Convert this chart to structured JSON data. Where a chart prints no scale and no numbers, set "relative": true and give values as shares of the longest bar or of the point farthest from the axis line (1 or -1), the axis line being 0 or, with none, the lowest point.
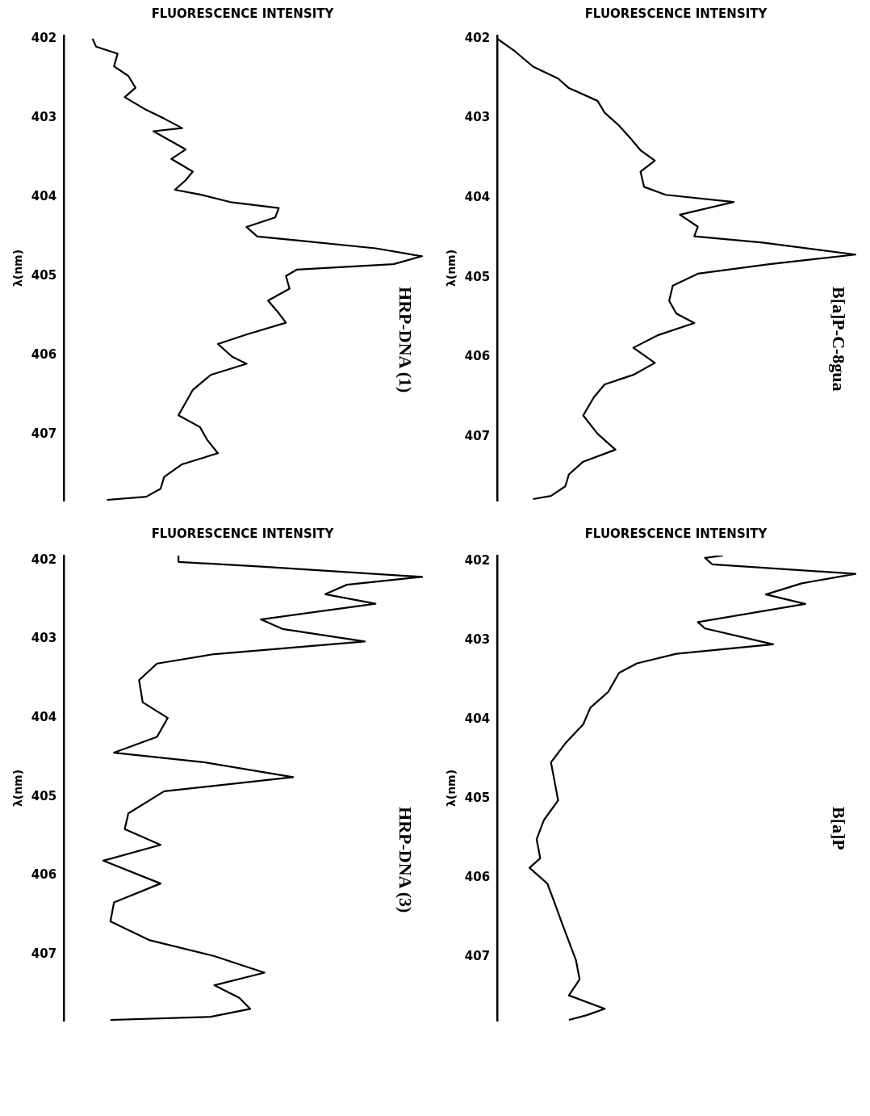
{
  "chart_data": [
    {
      "type": "line",
      "title": "HRP-DNA (1)",
      "xlabel": "FLUORESCENCE INTENSITY",
      "ylabel": "λ(nm)",
      "orientation": "horizontal",
      "relative": true,
      "ylim": [
        407.84,
        401.96
      ],
      "yticks": [
        402,
        403,
        404,
        405,
        406,
        407
      ],
      "tick_labels": "y",
      "series": [
        {
          "color": "#000000",
          "x": [
            402.0,
            402.1,
            402.19,
            402.35,
            402.47,
            402.62,
            402.74,
            402.9,
            403.01,
            403.13,
            403.17,
            403.4,
            403.52,
            403.68,
            403.79,
            403.91,
            403.97,
            404.07,
            404.14,
            404.26,
            404.38,
            404.5,
            404.55,
            404.65,
            404.75,
            404.85,
            404.92,
            405.0,
            405.16,
            405.31,
            405.47,
            405.59,
            405.74,
            405.86,
            406.02,
            406.11,
            406.25,
            406.44,
            406.6,
            406.76,
            406.91,
            407.07,
            407.24,
            407.38,
            407.54,
            407.69,
            407.79,
            407.83
          ],
          "values": [
            0.08,
            0.09,
            0.15,
            0.14,
            0.18,
            0.2,
            0.17,
            0.23,
            0.28,
            0.33,
            0.25,
            0.34,
            0.3,
            0.36,
            0.34,
            0.31,
            0.38,
            0.47,
            0.6,
            0.59,
            0.51,
            0.54,
            0.65,
            0.87,
            1.0,
            0.92,
            0.65,
            0.62,
            0.63,
            0.57,
            0.6,
            0.62,
            0.51,
            0.43,
            0.47,
            0.51,
            0.41,
            0.36,
            0.34,
            0.32,
            0.38,
            0.4,
            0.43,
            0.33,
            0.28,
            0.27,
            0.23,
            0.12
          ]
        }
      ]
    },
    {
      "type": "line",
      "title": "B[a]P-C-8gua",
      "xlabel": "FLUORESCENCE INTENSITY",
      "ylabel": "λ(nm)",
      "orientation": "horizontal",
      "relative": true,
      "ylim": [
        407.8,
        401.96
      ],
      "yticks": [
        402,
        403,
        404,
        405,
        406,
        407
      ],
      "tick_labels": "y",
      "series": [
        {
          "color": "#000000",
          "x": [
            402.0,
            402.16,
            402.35,
            402.5,
            402.62,
            402.78,
            402.93,
            403.09,
            403.24,
            403.4,
            403.53,
            403.67,
            403.86,
            403.96,
            404.05,
            404.21,
            404.36,
            404.48,
            404.56,
            404.71,
            404.83,
            404.95,
            405.1,
            405.29,
            405.45,
            405.57,
            405.72,
            405.88,
            406.07,
            406.22,
            406.34,
            406.5,
            406.73,
            406.96,
            407.16,
            407.31,
            407.47,
            407.62,
            407.74,
            407.78
          ],
          "values": [
            0.0,
            0.05,
            0.1,
            0.17,
            0.2,
            0.28,
            0.3,
            0.34,
            0.37,
            0.4,
            0.44,
            0.4,
            0.41,
            0.47,
            0.66,
            0.51,
            0.56,
            0.55,
            0.74,
            1.0,
            0.76,
            0.56,
            0.49,
            0.48,
            0.5,
            0.55,
            0.45,
            0.38,
            0.44,
            0.38,
            0.3,
            0.27,
            0.24,
            0.28,
            0.33,
            0.24,
            0.2,
            0.19,
            0.15,
            0.1
          ]
        }
      ]
    },
    {
      "type": "line",
      "title": "HRP-DNA (3)",
      "xlabel": "FLUORESCENCE INTENSITY",
      "ylabel": "λ(nm)",
      "orientation": "horizontal",
      "relative": true,
      "ylim": [
        407.84,
        401.94
      ],
      "yticks": [
        402,
        403,
        404,
        405,
        406,
        407
      ],
      "tick_labels": "y",
      "series": [
        {
          "color": "#000000",
          "x": [
            401.94,
            402.02,
            402.08,
            402.21,
            402.31,
            402.43,
            402.55,
            402.75,
            402.87,
            403.03,
            403.19,
            403.31,
            403.52,
            403.8,
            404.0,
            404.24,
            404.44,
            404.56,
            404.75,
            404.93,
            405.21,
            405.41,
            405.61,
            405.81,
            406.1,
            406.34,
            406.58,
            406.82,
            407.02,
            407.23,
            407.39,
            407.55,
            407.69,
            407.79,
            407.83
          ],
          "values": [
            0.32,
            0.32,
            0.55,
            1.0,
            0.79,
            0.73,
            0.87,
            0.55,
            0.61,
            0.84,
            0.42,
            0.26,
            0.21,
            0.22,
            0.29,
            0.26,
            0.14,
            0.39,
            0.64,
            0.28,
            0.18,
            0.17,
            0.27,
            0.11,
            0.27,
            0.14,
            0.13,
            0.24,
            0.42,
            0.56,
            0.42,
            0.49,
            0.52,
            0.41,
            0.13
          ]
        }
      ]
    },
    {
      "type": "line",
      "title": "B[a]P",
      "xlabel": "FLUORESCENCE INTENSITY",
      "ylabel": "λ(nm)",
      "orientation": "horizontal",
      "relative": true,
      "ylim": [
        407.8,
        401.93
      ],
      "yticks": [
        402,
        403,
        404,
        405,
        406,
        407
      ],
      "tick_labels": "y",
      "series": [
        {
          "color": "#000000",
          "x": [
            401.93,
            401.96,
            402.04,
            402.16,
            402.28,
            402.42,
            402.54,
            402.77,
            402.85,
            403.05,
            403.17,
            403.29,
            403.41,
            403.65,
            403.85,
            404.06,
            404.3,
            404.54,
            404.78,
            405.02,
            405.27,
            405.51,
            405.75,
            405.87,
            406.07,
            406.31,
            406.56,
            406.8,
            407.04,
            407.28,
            407.48,
            407.65,
            407.73,
            407.79
          ],
          "values": [
            0.63,
            0.58,
            0.6,
            1.0,
            0.85,
            0.75,
            0.86,
            0.56,
            0.58,
            0.77,
            0.5,
            0.39,
            0.34,
            0.31,
            0.26,
            0.24,
            0.19,
            0.15,
            0.16,
            0.17,
            0.13,
            0.11,
            0.12,
            0.09,
            0.14,
            0.16,
            0.18,
            0.2,
            0.22,
            0.23,
            0.2,
            0.3,
            0.25,
            0.2
          ]
        }
      ]
    }
  ]
}
